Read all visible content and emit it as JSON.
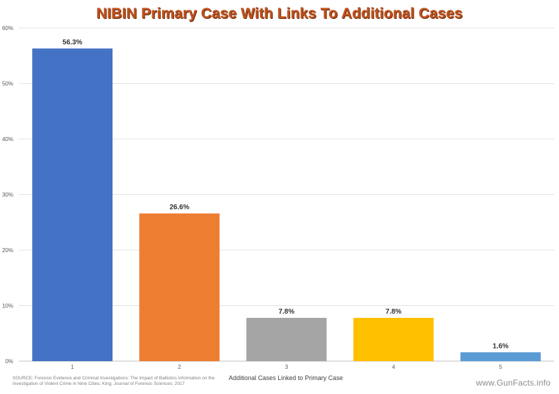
{
  "chart_data": {
    "type": "bar",
    "title": "NIBIN Primary Case With Links To Additional Cases",
    "categories": [
      "1",
      "2",
      "3",
      "4",
      "5"
    ],
    "values": [
      56.3,
      26.6,
      7.8,
      7.8,
      1.6
    ],
    "data_labels": [
      "56.3%",
      "26.6%",
      "7.8%",
      "7.8%",
      "1.6%"
    ],
    "bar_colors": [
      "#4472c4",
      "#ed7d31",
      "#a5a5a5",
      "#ffc000",
      "#5b9bd5"
    ],
    "xlabel": "Additional Cases Linked to Primary Case",
    "ylabel": "",
    "ylim": [
      0,
      60
    ],
    "yticks": [
      0,
      10,
      20,
      30,
      40,
      50,
      60
    ],
    "ytick_labels": [
      "0%",
      "10%",
      "20%",
      "30%",
      "40%",
      "50%",
      "60%"
    ],
    "grid": true,
    "title_color": "#c0501a"
  },
  "source": "SOURCE: Forensic Evidence and Criminal Investigations: The Impact of Ballistics Information on the Investigation of Violent Crime in Nine Cities; King; Journal of Forensic Sciences; 2017",
  "watermark": "www.GunFacts.info"
}
